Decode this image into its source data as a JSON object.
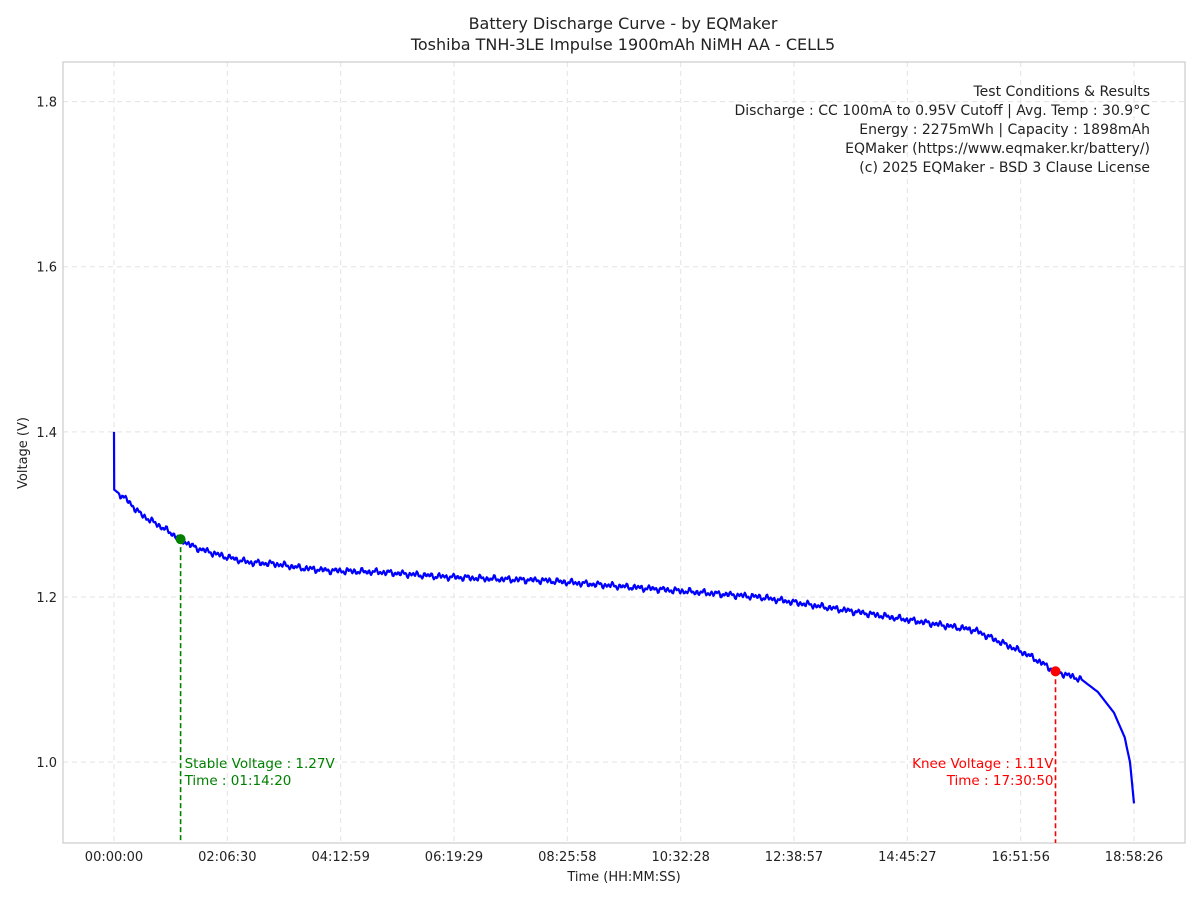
{
  "chart_data": {
    "type": "line",
    "title": "Battery Discharge Curve - by EQMaker",
    "subtitle": "Toshiba TNH-3LE Impulse 1900mAh NiMH AA - CELL5",
    "xlabel": "Time (HH:MM:SS)",
    "ylabel": "Voltage (V)",
    "xlim_seconds": [
      -3415,
      71721
    ],
    "ylim": [
      0.902,
      1.848
    ],
    "grid": true,
    "x_ticks": [
      {
        "value": 0,
        "label": "00:00:00"
      },
      {
        "value": 7590,
        "label": "02:06:30"
      },
      {
        "value": 15179,
        "label": "04:12:59"
      },
      {
        "value": 22769,
        "label": "06:19:29"
      },
      {
        "value": 30358,
        "label": "08:25:58"
      },
      {
        "value": 37948,
        "label": "10:32:28"
      },
      {
        "value": 45537,
        "label": "12:38:57"
      },
      {
        "value": 53127,
        "label": "14:45:27"
      },
      {
        "value": 60716,
        "label": "16:51:56"
      },
      {
        "value": 68306,
        "label": "18:58:26"
      }
    ],
    "y_ticks": [
      {
        "value": 1.0,
        "label": "1.0"
      },
      {
        "value": 1.2,
        "label": "1.2"
      },
      {
        "value": 1.4,
        "label": "1.4"
      },
      {
        "value": 1.6,
        "label": "1.6"
      },
      {
        "value": 1.8,
        "label": "1.8"
      }
    ],
    "series": [
      {
        "name": "Voltage",
        "color": "#0000ff",
        "x_hours": [
          0,
          0.003,
          0.2,
          0.5,
          1.0,
          1.239,
          1.5,
          2,
          2.5,
          3,
          3.5,
          4,
          5,
          6,
          7,
          8,
          9,
          10,
          11,
          12,
          13,
          14,
          15,
          16,
          16.5,
          17,
          17.514,
          18,
          18.3,
          18.6,
          18.8,
          18.9,
          18.974
        ],
        "y": [
          1.4,
          1.33,
          1.32,
          1.3,
          1.28,
          1.27,
          1.26,
          1.25,
          1.242,
          1.24,
          1.235,
          1.232,
          1.23,
          1.225,
          1.222,
          1.22,
          1.215,
          1.21,
          1.205,
          1.2,
          1.19,
          1.18,
          1.17,
          1.16,
          1.145,
          1.13,
          1.11,
          1.1,
          1.085,
          1.06,
          1.03,
          1.0,
          0.95
        ]
      }
    ],
    "markers": [
      {
        "name": "stable",
        "x_seconds": 4460,
        "y": 1.27,
        "color": "#008000",
        "line1": "Stable Voltage : 1.27V",
        "line2": "Time : 01:14:20"
      },
      {
        "name": "knee",
        "x_seconds": 63050,
        "y": 1.11,
        "color": "#ff0000",
        "line1": "Knee Voltage : 1.11V",
        "line2": "Time : 17:30:50"
      }
    ],
    "info_box": [
      "Test Conditions & Results",
      "Discharge : CC 100mA to 0.95V Cutoff | Avg. Temp : 30.9°C",
      "Energy : 2275mWh | Capacity : 1898mAh",
      "EQMaker (https://www.eqmaker.kr/battery/)",
      "(c) 2025 EQMaker - BSD 3 Clause License"
    ]
  }
}
